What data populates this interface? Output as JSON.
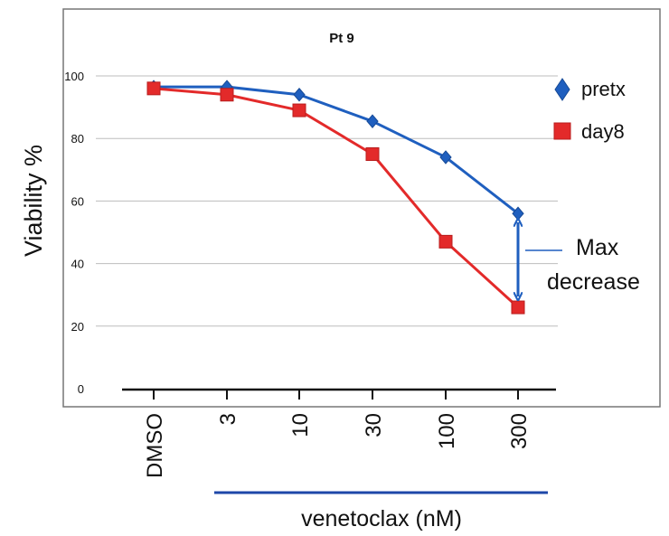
{
  "chart_data": {
    "type": "line",
    "title": "Pt 9",
    "ylabel": "Viability %",
    "xlabel": "venetoclax (nM)",
    "categories": [
      "DMSO",
      "3",
      "10",
      "30",
      "100",
      "300"
    ],
    "ylim": [
      0,
      100
    ],
    "yticks": [
      "0",
      "20",
      "40",
      "60",
      "80",
      "100"
    ],
    "grid": true,
    "legend_position": "right",
    "series": [
      {
        "name": "pretx",
        "values": [
          96.5,
          96.5,
          94,
          85.5,
          74,
          56
        ],
        "color": "#1f5fbf",
        "marker": "diamond"
      },
      {
        "name": "day8",
        "values": [
          96,
          94,
          89,
          75,
          47,
          26
        ],
        "color": "#e32a2a",
        "marker": "square"
      }
    ],
    "annotation": {
      "text_line1": "Max",
      "text_line2": "decrease"
    },
    "colors": {
      "bracket": "#1e47a8",
      "arrow": "#1f5fbf",
      "grid": "#bdbdbd",
      "frame": "#777777"
    }
  }
}
